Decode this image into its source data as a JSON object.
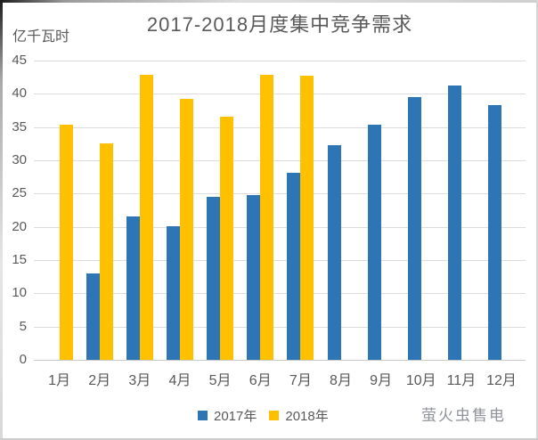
{
  "title": "2017-2018月度集中竞争需求",
  "unit_label": "亿千瓦时",
  "watermark": "萤火虫售电",
  "colors": {
    "series_2017": "#2e75b6",
    "series_2018": "#ffc000",
    "text": "#595959",
    "gridline": "#dcdcdc",
    "watermark_text": "#8f9399"
  },
  "legend": {
    "items": [
      {
        "label": "2017年",
        "color": "#2e75b6"
      },
      {
        "label": "2018年",
        "color": "#ffc000"
      }
    ]
  },
  "chart_data": {
    "type": "bar",
    "title": "2017-2018月度集中竞争需求",
    "xlabel": "",
    "ylabel": "亿千瓦时",
    "categories": [
      "1月",
      "2月",
      "3月",
      "4月",
      "5月",
      "6月",
      "7月",
      "8月",
      "9月",
      "10月",
      "11月",
      "12月"
    ],
    "series": [
      {
        "name": "2017年",
        "color": "#2e75b6",
        "values": [
          null,
          13.0,
          21.6,
          20.1,
          24.5,
          24.8,
          28.1,
          32.3,
          35.4,
          39.5,
          41.2,
          38.3
        ]
      },
      {
        "name": "2018年",
        "color": "#ffc000",
        "values": [
          35.3,
          32.6,
          42.9,
          39.3,
          36.5,
          42.9,
          42.7,
          null,
          null,
          null,
          null,
          null
        ]
      }
    ],
    "ylim": [
      0,
      45
    ],
    "ytick_step": 5,
    "grid": true,
    "legend_position": "bottom"
  }
}
